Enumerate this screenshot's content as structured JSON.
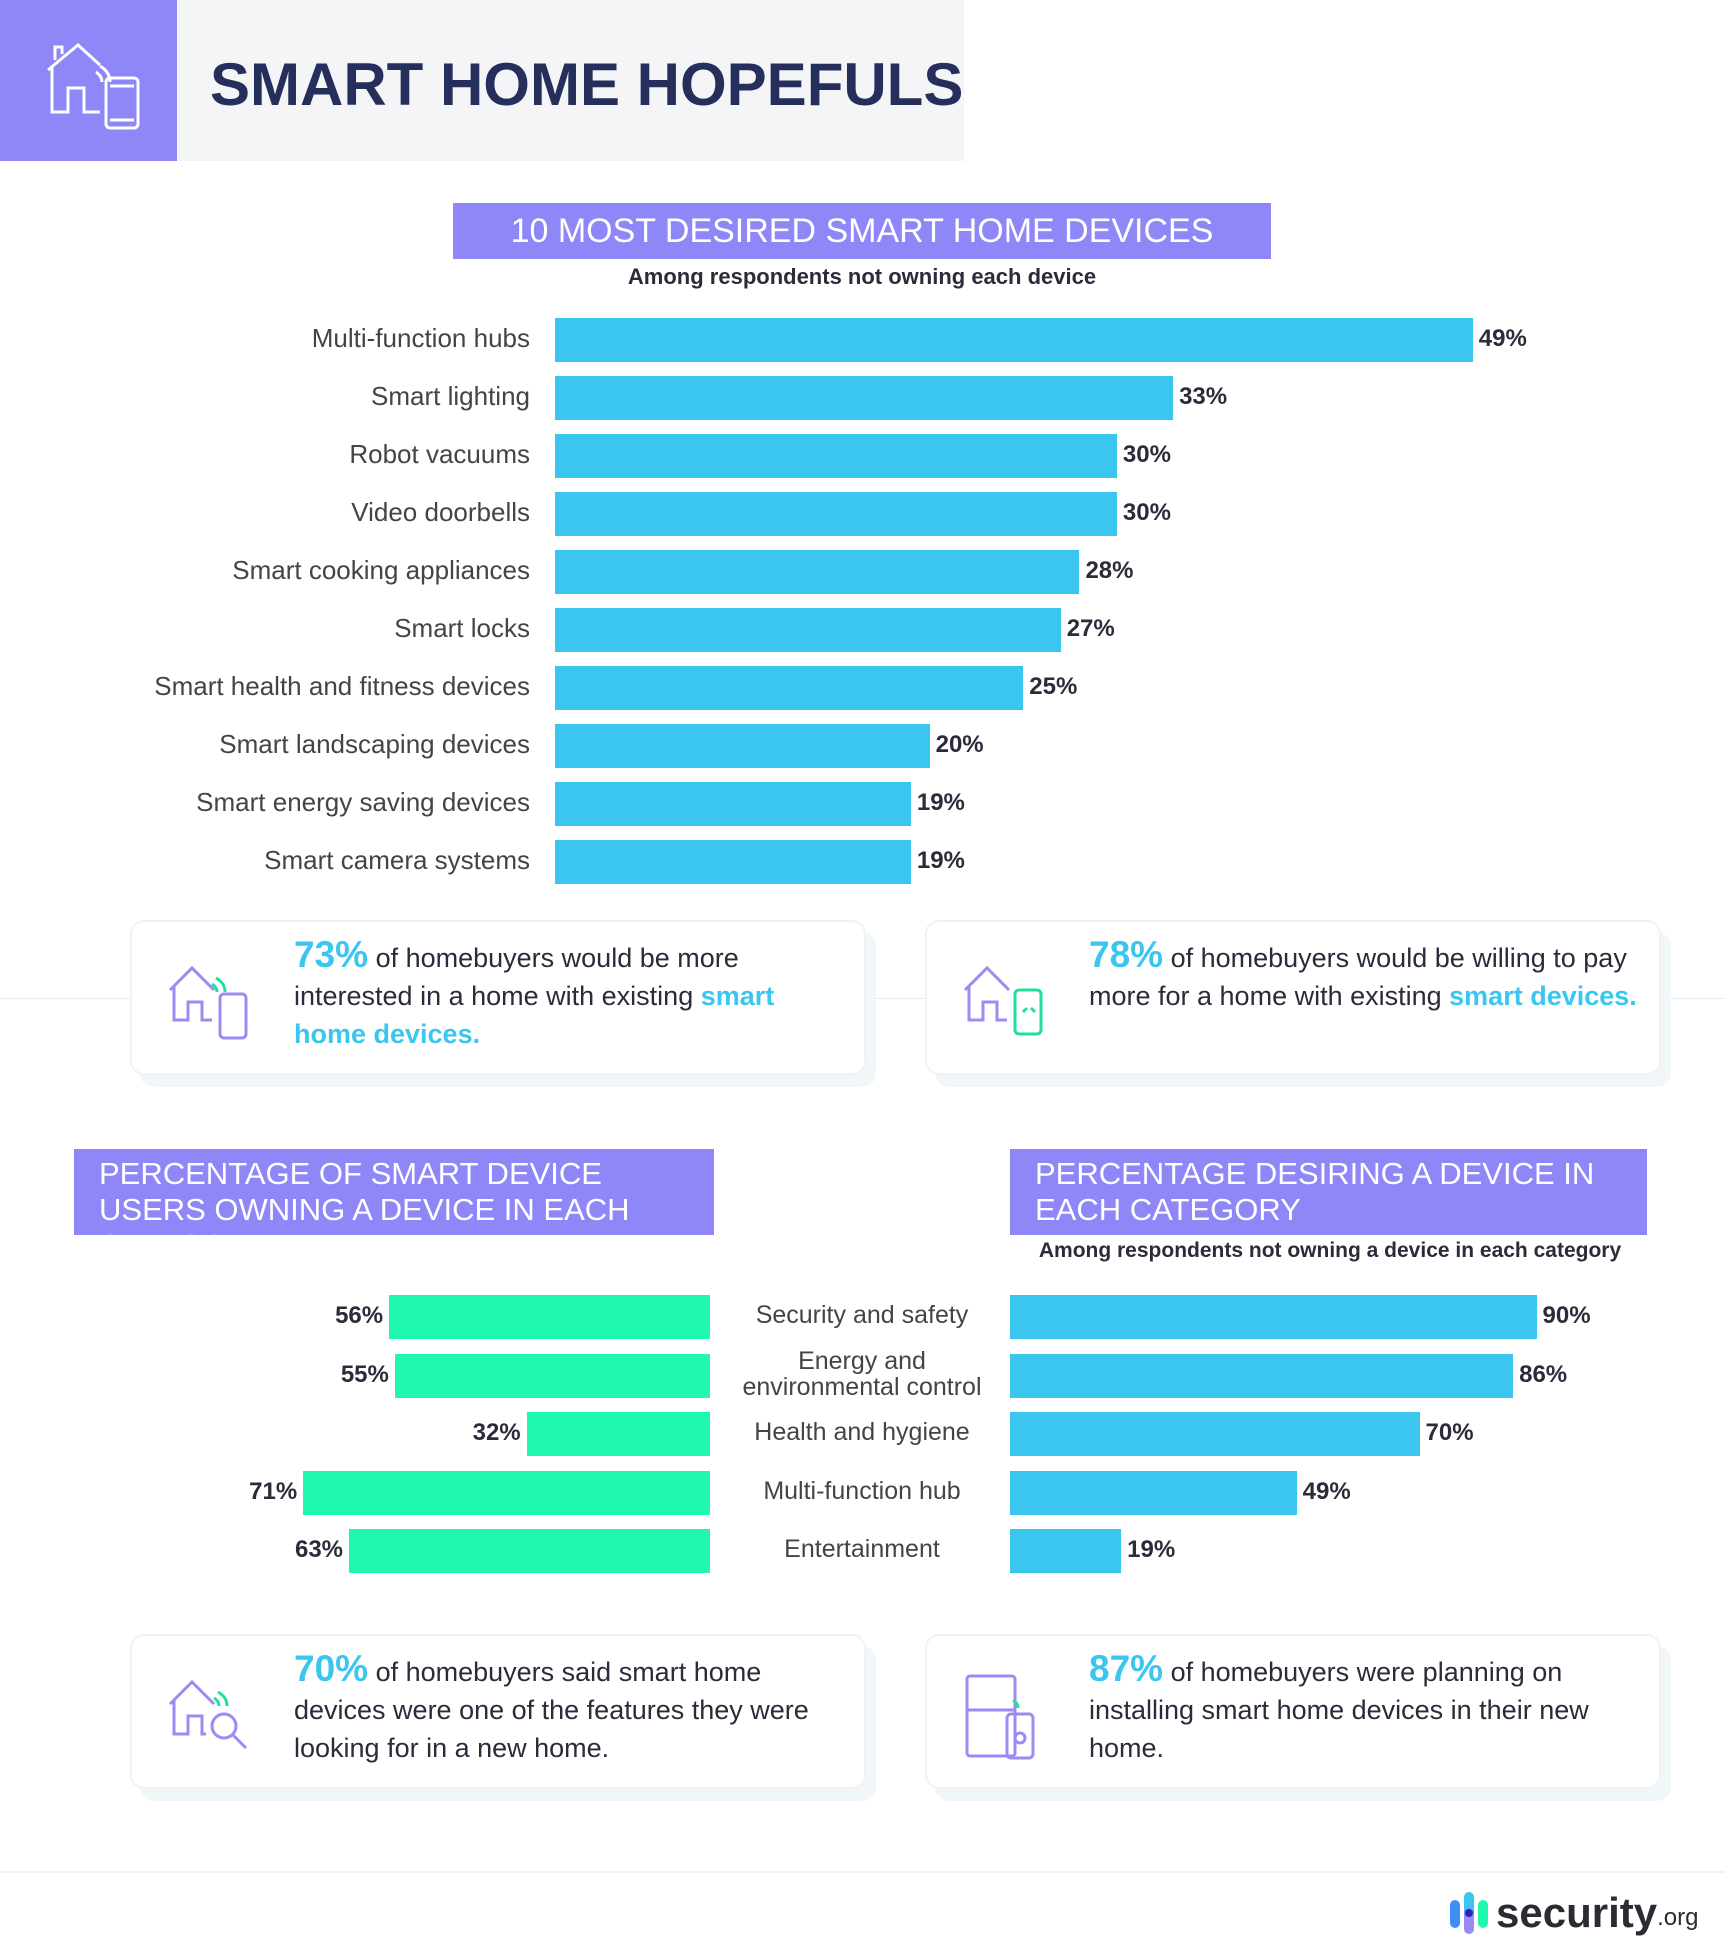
{
  "header": {
    "title": "SMART HOME HOPEFULS",
    "icon": "smart-home-phone-icon"
  },
  "colors": {
    "accent_purple": "#8f86f7",
    "bar_blue": "#3ac6ee",
    "bar_green": "#1ff8b0",
    "title_navy": "#262f5c"
  },
  "chart_data": [
    {
      "type": "bar",
      "orientation": "horizontal",
      "title": "10 MOST DESIRED SMART HOME DEVICES",
      "subtitle": "Among respondents not owning each device",
      "categories": [
        "Multi-function hubs",
        "Smart lighting",
        "Robot vacuums",
        "Video doorbells",
        "Smart cooking appliances",
        "Smart locks",
        "Smart health and fitness devices",
        "Smart landscaping devices",
        "Smart energy saving devices",
        "Smart camera systems"
      ],
      "values": [
        49,
        33,
        30,
        30,
        28,
        27,
        25,
        20,
        19,
        19
      ],
      "value_labels": [
        "49%",
        "33%",
        "30%",
        "30%",
        "28%",
        "27%",
        "25%",
        "20%",
        "19%",
        "19%"
      ]
    },
    {
      "type": "bar",
      "orientation": "horizontal",
      "title": "PERCENTAGE OF SMART DEVICE USERS OWNING A DEVICE IN EACH CATEGORY",
      "categories": [
        "Security and safety",
        "Energy and environmental control",
        "Health and hygiene",
        "Multi-function hub",
        "Entertainment"
      ],
      "values": [
        56,
        55,
        32,
        71,
        63
      ],
      "value_labels": [
        "56%",
        "55%",
        "32%",
        "71%",
        "63%"
      ]
    },
    {
      "type": "bar",
      "orientation": "horizontal",
      "title": "PERCENTAGE DESIRING A DEVICE IN EACH CATEGORY",
      "subtitle": "Among respondents not owning a device in each category",
      "categories": [
        "Security and safety",
        "Energy and environmental control",
        "Health and hygiene",
        "Multi-function hub",
        "Entertainment"
      ],
      "values": [
        90,
        86,
        70,
        49,
        19
      ],
      "value_labels": [
        "90%",
        "86%",
        "70%",
        "49%",
        "19%"
      ]
    }
  ],
  "category_labels": [
    [
      "Security and safety"
    ],
    [
      "Energy and",
      "environmental control"
    ],
    [
      "Health and hygiene"
    ],
    [
      "Multi-function hub"
    ],
    [
      "Entertainment"
    ]
  ],
  "callouts": [
    {
      "stat": "73%",
      "text": " of homebuyers would be more interested in a home with existing ",
      "highlight": "smart home devices.",
      "icon": "house-phone-icon"
    },
    {
      "stat": "78%",
      "text": " of homebuyers would be willing to pay more for a home with existing ",
      "highlight": "smart devices.",
      "icon": "house-device-icon"
    },
    {
      "stat": "70%",
      "text": " of homebuyers said smart home devices were one of the features they were looking for in a new home.",
      "highlight": "",
      "icon": "house-search-icon"
    },
    {
      "stat": "87%",
      "text": " of homebuyers were planning on installing smart home devices in their new home.",
      "highlight": "",
      "icon": "fridge-phone-icon"
    }
  ],
  "footer": {
    "logo_text": "security",
    "logo_suffix": ".org"
  }
}
